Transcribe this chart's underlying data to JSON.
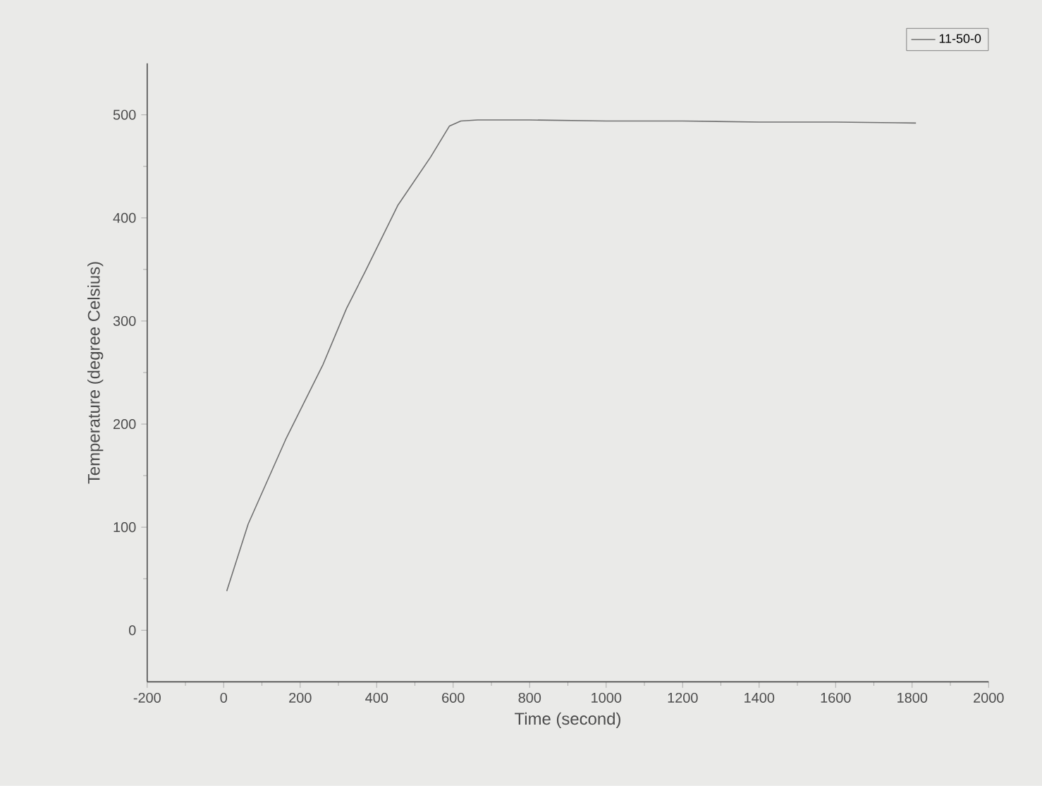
{
  "chart_data": {
    "type": "line",
    "xlabel": "Time (second)",
    "ylabel": "Temperature (degree Celsius)",
    "xlim": [
      -200,
      2000
    ],
    "ylim": [
      -50,
      550
    ],
    "xticks": [
      -200,
      0,
      200,
      400,
      600,
      800,
      1000,
      1200,
      1400,
      1600,
      1800,
      2000
    ],
    "yticks": [
      0,
      100,
      200,
      300,
      400,
      500
    ],
    "legend": "top right",
    "grid": false,
    "marker": "none",
    "line_style": "solid",
    "series": [
      {
        "name": "11-50-0",
        "color": "#707070",
        "x": [
          8,
          64,
          162,
          260,
          321,
          370,
          455,
          541,
          590,
          620,
          664,
          800,
          1000,
          1200,
          1400,
          1600,
          1810
        ],
        "values": [
          38,
          103,
          185,
          258,
          312,
          348,
          412,
          459,
          489,
          494,
          495,
          495,
          494,
          494,
          493,
          493,
          492
        ]
      }
    ]
  }
}
